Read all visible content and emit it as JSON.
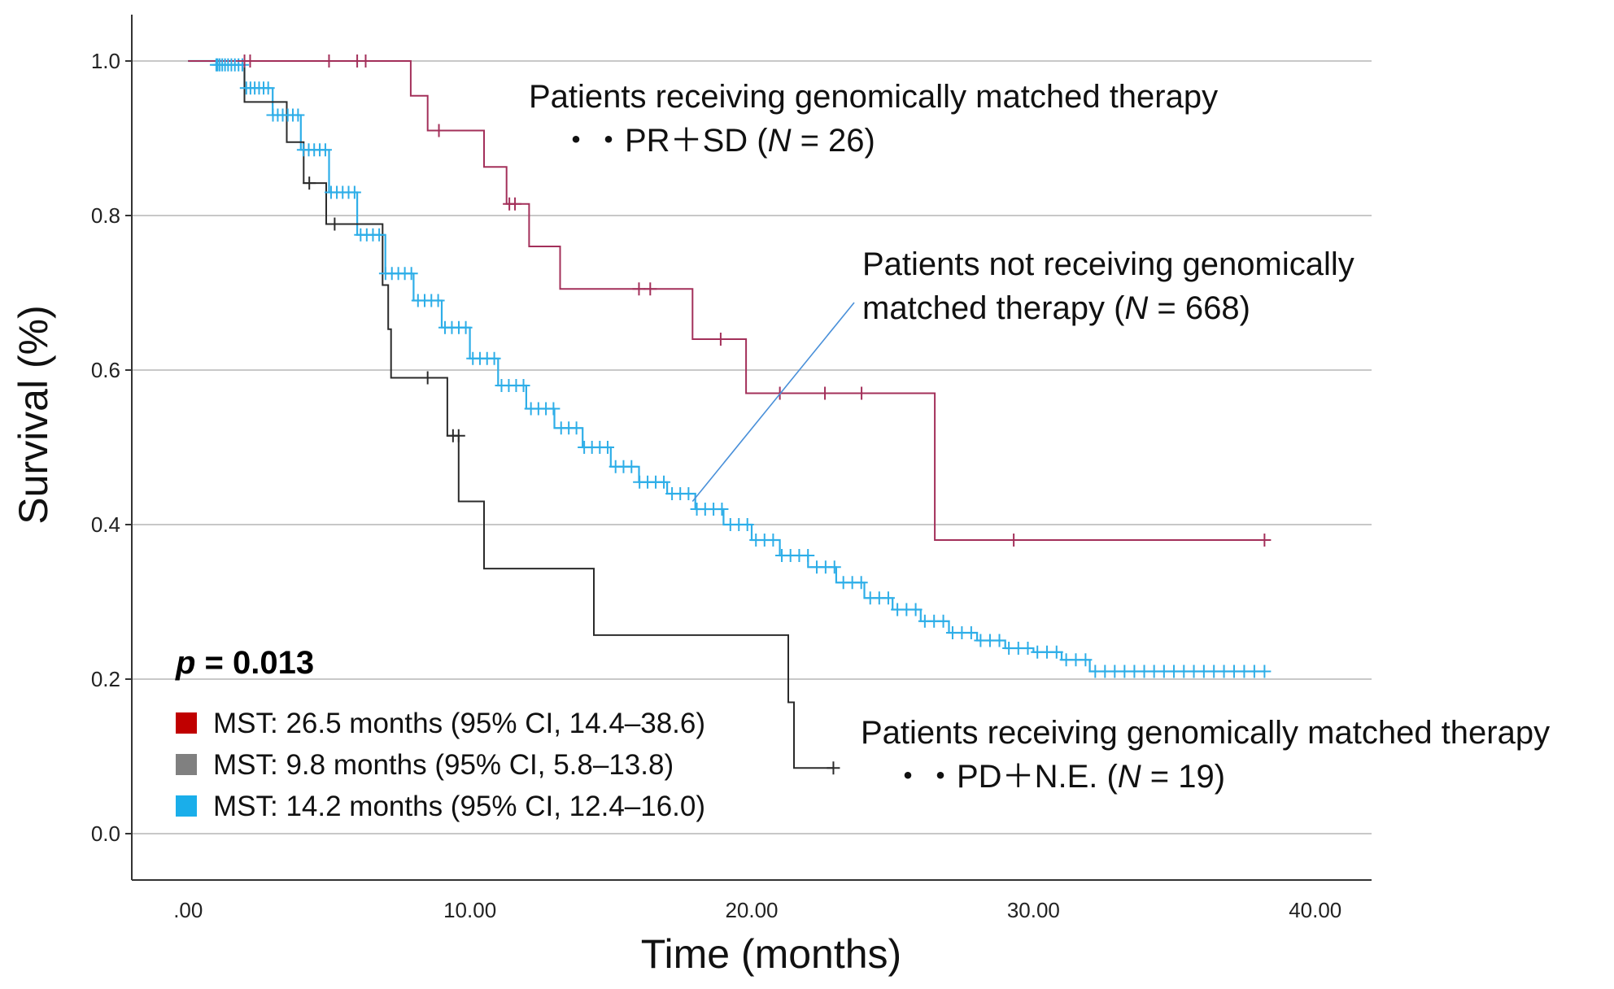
{
  "chart_data": {
    "type": "line",
    "subtype": "kaplan-meier",
    "xlabel": "Time (months)",
    "ylabel": "Survival (%)",
    "xlim": [
      -2,
      42
    ],
    "ylim": [
      -0.06,
      1.06
    ],
    "x_ticks": [
      0,
      10,
      20,
      30,
      40
    ],
    "x_tick_labels": [
      ".00",
      "10.00",
      "20.00",
      "30.00",
      "40.00"
    ],
    "y_ticks": [
      0,
      0.2,
      0.4,
      0.6,
      0.8,
      1.0
    ],
    "y_tick_labels": [
      "0.0",
      "0.2",
      "0.4",
      "0.6",
      "0.8",
      "1.0"
    ],
    "grid": "horizontal",
    "p_value": {
      "label": "p",
      "value_text": " = 0.013"
    },
    "legend": [
      {
        "color": "#c00000",
        "text": "MST: 26.5 months (95%  CI, 14.4–38.6)"
      },
      {
        "color": "#808080",
        "text": "MST:   9.8 months (95%  CI,   5.8–13.8)"
      },
      {
        "color": "#1aaeea",
        "text": "MST: 14.2 months (95%  CI, 12.4–16.0)"
      }
    ],
    "annotations": {
      "matched_good": {
        "line1": "Patients receiving genomically matched therapy",
        "line2_prefix": "・・PR＋SD (",
        "n_label": "N",
        "line2_suffix": " = 26)"
      },
      "not_matched": {
        "line1": "Patients not receiving genomically",
        "line2_prefix": "matched therapy  (",
        "n_label": "N",
        "line2_suffix": " = 668)",
        "pointer_to": [
          17.9,
          0.43
        ]
      },
      "matched_poor": {
        "line1": "Patients receiving genomically matched therapy",
        "line2_prefix": "・・PD＋N.E. (",
        "n_label": "N",
        "line2_suffix": " = 19)"
      }
    },
    "series": [
      {
        "name": "PR+SD (N = 26)",
        "color": "#a3305a",
        "steps": [
          [
            0,
            1.0
          ],
          [
            7.9,
            0.955
          ],
          [
            8.5,
            0.91
          ],
          [
            10.5,
            0.863
          ],
          [
            11.3,
            0.815
          ],
          [
            12.1,
            0.76
          ],
          [
            13.2,
            0.705
          ],
          [
            17.9,
            0.64
          ],
          [
            19.8,
            0.57
          ],
          [
            26.5,
            0.38
          ],
          [
            38.2,
            0.38
          ]
        ],
        "censored": [
          [
            2.0,
            1.0
          ],
          [
            2.2,
            1.0
          ],
          [
            5.0,
            1.0
          ],
          [
            6.0,
            1.0
          ],
          [
            6.3,
            1.0
          ],
          [
            8.9,
            0.91
          ],
          [
            11.4,
            0.815
          ],
          [
            11.6,
            0.815
          ],
          [
            16.0,
            0.705
          ],
          [
            16.4,
            0.705
          ],
          [
            18.9,
            0.64
          ],
          [
            21.0,
            0.57
          ],
          [
            22.6,
            0.57
          ],
          [
            23.9,
            0.57
          ],
          [
            29.3,
            0.38
          ],
          [
            38.2,
            0.38
          ]
        ]
      },
      {
        "name": "PD+N.E. (N = 19)",
        "color": "#2b2b2b",
        "steps": [
          [
            0,
            1.0
          ],
          [
            2.0,
            0.947
          ],
          [
            3.5,
            0.895
          ],
          [
            4.1,
            0.842
          ],
          [
            4.9,
            0.789
          ],
          [
            6.9,
            0.71
          ],
          [
            7.1,
            0.653
          ],
          [
            7.2,
            0.59
          ],
          [
            9.2,
            0.515
          ],
          [
            9.6,
            0.43
          ],
          [
            10.5,
            0.343
          ],
          [
            14.4,
            0.257
          ],
          [
            21.3,
            0.17
          ],
          [
            21.5,
            0.085
          ],
          [
            22.9,
            0.085
          ]
        ],
        "censored": [
          [
            4.3,
            0.842
          ],
          [
            5.2,
            0.789
          ],
          [
            8.5,
            0.59
          ],
          [
            9.4,
            0.515
          ],
          [
            9.6,
            0.515
          ],
          [
            22.9,
            0.085
          ]
        ]
      },
      {
        "name": "Not matched (N = 668)",
        "color": "#2eaee8",
        "steps": [
          [
            0,
            1.0
          ],
          [
            1,
            0.995
          ],
          [
            2,
            0.965
          ],
          [
            3,
            0.93
          ],
          [
            4,
            0.885
          ],
          [
            5,
            0.83
          ],
          [
            6,
            0.775
          ],
          [
            7,
            0.725
          ],
          [
            8,
            0.69
          ],
          [
            9,
            0.655
          ],
          [
            10,
            0.615
          ],
          [
            11,
            0.58
          ],
          [
            12,
            0.55
          ],
          [
            13,
            0.525
          ],
          [
            14,
            0.5
          ],
          [
            15,
            0.475
          ],
          [
            16,
            0.455
          ],
          [
            17,
            0.44
          ],
          [
            18,
            0.42
          ],
          [
            19,
            0.4
          ],
          [
            20,
            0.38
          ],
          [
            21,
            0.36
          ],
          [
            22,
            0.345
          ],
          [
            23,
            0.325
          ],
          [
            24,
            0.305
          ],
          [
            25,
            0.29
          ],
          [
            26,
            0.275
          ],
          [
            27,
            0.26
          ],
          [
            28,
            0.25
          ],
          [
            29,
            0.24
          ],
          [
            30,
            0.235
          ],
          [
            31,
            0.225
          ],
          [
            32,
            0.21
          ],
          [
            38.2,
            0.21
          ]
        ],
        "censored_count": 140,
        "censored_range": [
          1.0,
          38.2
        ]
      }
    ]
  }
}
